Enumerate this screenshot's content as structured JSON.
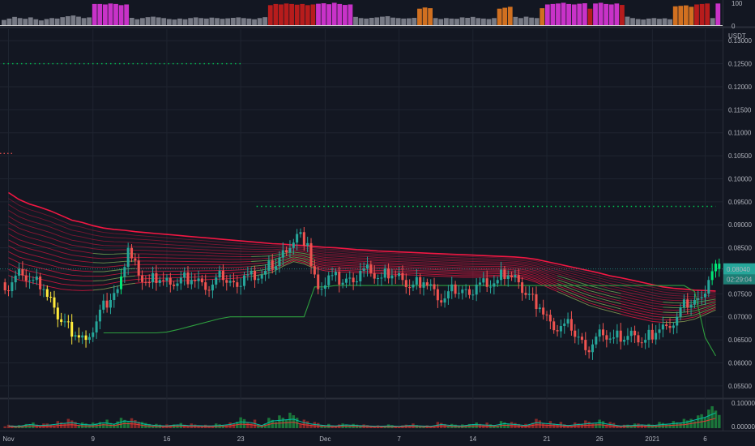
{
  "colors": {
    "background": "#131722",
    "grid": "#1f2430",
    "separator": "#2a2e39",
    "axis_text": "#b2b5be",
    "bull": "#26a69a",
    "bear": "#ef5350",
    "bright_green": "#00e676",
    "ribbon_red": "#ff1744",
    "ribbon_green": "#4caf50",
    "magenta": "#c832c8",
    "dark_red": "#b71c1c",
    "orange": "#d17020",
    "gray": "#787b86",
    "yellow": "#ffeb3b",
    "dotted_green": "#00c853",
    "price_badge": "#26a69a"
  },
  "chart_data": [
    {
      "type": "bar",
      "name_visible": false,
      "ylim": [
        0,
        100
      ],
      "yticks": [
        "100",
        "0"
      ],
      "values": [
        22,
        28,
        35,
        30,
        27,
        33,
        25,
        20,
        26,
        30,
        28,
        34,
        38,
        41,
        36,
        30,
        33,
        90,
        90,
        88,
        92,
        90,
        85,
        88,
        31,
        25,
        30,
        34,
        36,
        33,
        30,
        26,
        24,
        28,
        25,
        30,
        33,
        30,
        28,
        32,
        30,
        27,
        29,
        31,
        33,
        30,
        28,
        25,
        30,
        34,
        85,
        90,
        88,
        92,
        90,
        87,
        90,
        85,
        88,
        91,
        93,
        89,
        95,
        90,
        86,
        88,
        35,
        30,
        28,
        31,
        33,
        36,
        38,
        32,
        30,
        28,
        29,
        31,
        70,
        75,
        72,
        30,
        26,
        30,
        28,
        27,
        33,
        31,
        35,
        30,
        28,
        26,
        30,
        70,
        74,
        78,
        35,
        30,
        36,
        32,
        30,
        72,
        88,
        90,
        92,
        95,
        90,
        88,
        91,
        93,
        70,
        92,
        95,
        90,
        88,
        92,
        86,
        36,
        30,
        26,
        24,
        28,
        30,
        27,
        29,
        25,
        80,
        82,
        84,
        78,
        88,
        90,
        92,
        30,
        92
      ],
      "colors_key": [
        "g",
        "g",
        "g",
        "g",
        "g",
        "g",
        "g",
        "g",
        "g",
        "g",
        "g",
        "g",
        "g",
        "g",
        "g",
        "g",
        "g",
        "m",
        "m",
        "m",
        "m",
        "m",
        "m",
        "m",
        "g",
        "g",
        "g",
        "g",
        "g",
        "g",
        "g",
        "g",
        "g",
        "g",
        "g",
        "g",
        "g",
        "g",
        "g",
        "g",
        "g",
        "g",
        "g",
        "g",
        "g",
        "g",
        "g",
        "g",
        "g",
        "g",
        "r",
        "r",
        "r",
        "r",
        "r",
        "r",
        "r",
        "r",
        "r",
        "m",
        "m",
        "m",
        "m",
        "m",
        "m",
        "m",
        "g",
        "g",
        "g",
        "g",
        "g",
        "g",
        "g",
        "g",
        "g",
        "g",
        "g",
        "g",
        "o",
        "o",
        "o",
        "g",
        "g",
        "g",
        "g",
        "g",
        "g",
        "g",
        "g",
        "g",
        "g",
        "g",
        "g",
        "o",
        "o",
        "o",
        "g",
        "g",
        "g",
        "g",
        "g",
        "o",
        "m",
        "m",
        "m",
        "m",
        "m",
        "m",
        "m",
        "m",
        "r",
        "m",
        "m",
        "m",
        "m",
        "m",
        "r",
        "g",
        "g",
        "g",
        "g",
        "g",
        "g",
        "g",
        "g",
        "g",
        "o",
        "o",
        "o",
        "o",
        "r",
        "r",
        "r",
        "g",
        "m"
      ]
    },
    {
      "type": "candlestick",
      "currency": "USDT",
      "ylim": [
        0.0525,
        0.1325
      ],
      "price_ticks": [
        "0.13000",
        "0.12500",
        "0.12000",
        "0.11500",
        "0.11000",
        "0.10500",
        "0.10000",
        "0.09500",
        "0.09000",
        "0.08500",
        "0.08000",
        "0.07500",
        "0.07000",
        "0.06500",
        "0.06000",
        "0.05500"
      ],
      "price_tick_values": [
        0.13,
        0.125,
        0.12,
        0.115,
        0.11,
        0.105,
        0.1,
        0.095,
        0.09,
        0.085,
        0.08,
        0.075,
        0.07,
        0.065,
        0.06,
        0.055
      ],
      "last_price": "0.08040",
      "last_price_value": 0.0804,
      "countdown": "02:29:04",
      "x_labels": [
        "Nov",
        "9",
        "16",
        "23",
        "Dec",
        "7",
        "14",
        "21",
        "26",
        "2021",
        "6"
      ],
      "x_label_positions_day_index": [
        0,
        8,
        15,
        22,
        30,
        37,
        44,
        51,
        56,
        61,
        66
      ],
      "days": 68,
      "closes": [
        0.0775,
        0.079,
        0.078,
        0.076,
        0.072,
        0.069,
        0.066,
        0.065,
        0.069,
        0.072,
        0.076,
        0.085,
        0.079,
        0.0775,
        0.078,
        0.077,
        0.0785,
        0.078,
        0.0775,
        0.077,
        0.078,
        0.0775,
        0.079,
        0.078,
        0.08,
        0.081,
        0.084,
        0.088,
        0.086,
        0.076,
        0.079,
        0.077,
        0.0785,
        0.08,
        0.0795,
        0.0785,
        0.079,
        0.078,
        0.077,
        0.0775,
        0.076,
        0.074,
        0.075,
        0.076,
        0.077,
        0.0765,
        0.078,
        0.079,
        0.0775,
        0.075,
        0.072,
        0.069,
        0.068,
        0.067,
        0.065,
        0.064,
        0.066,
        0.0655,
        0.065,
        0.066,
        0.065,
        0.0665,
        0.068,
        0.07,
        0.072,
        0.074,
        0.078,
        0.0804
      ],
      "series": [
        {
          "name_visible": false,
          "role": "upper_ribbon_top",
          "values": [
            0.097,
            0.0955,
            0.0945,
            0.0938,
            0.093,
            0.092,
            0.091,
            0.0905,
            0.0898,
            0.0893,
            0.089,
            0.0888,
            0.0885,
            0.0883,
            0.0881,
            0.0879,
            0.0877,
            0.0875,
            0.0873,
            0.0871,
            0.0869,
            0.0867,
            0.0865,
            0.0863,
            0.0861,
            0.0859,
            0.0858,
            0.0856,
            0.0855,
            0.0853,
            0.0851,
            0.085,
            0.0848,
            0.0846,
            0.0845,
            0.0843,
            0.0842,
            0.0841,
            0.084,
            0.0839,
            0.0838,
            0.0837,
            0.0836,
            0.0835,
            0.0834,
            0.0833,
            0.0832,
            0.0831,
            0.083,
            0.0828,
            0.0825,
            0.082,
            0.0815,
            0.081,
            0.0805,
            0.08,
            0.0795,
            0.0789,
            0.0785,
            0.078,
            0.0775,
            0.077,
            0.0765,
            0.0762,
            0.076,
            0.0758,
            0.0757,
            0.0756
          ]
        },
        {
          "name_visible": false,
          "role": "upper_ribbon_bottom",
          "values": [
            0.079,
            0.078,
            0.0775,
            0.077,
            0.0765,
            0.076,
            0.0758,
            0.0757,
            0.0758,
            0.076,
            0.0765,
            0.077,
            0.0773,
            0.0775,
            0.0776,
            0.0777,
            0.0778,
            0.0779,
            0.078,
            0.0781,
            0.0782,
            0.0783,
            0.0785,
            0.0788,
            0.0792,
            0.0797,
            0.081,
            0.082,
            0.0815,
            0.0805,
            0.08,
            0.0798,
            0.0797,
            0.0796,
            0.0795,
            0.0794,
            0.0793,
            0.0792,
            0.0791,
            0.079,
            0.0789,
            0.0788,
            0.0787,
            0.0786,
            0.0786,
            0.0786,
            0.0787,
            0.0788,
            0.0786,
            0.0782,
            0.0775,
            0.0765,
            0.0755,
            0.0745,
            0.0735,
            0.0725,
            0.0718,
            0.0712,
            0.0706,
            0.07,
            0.0695,
            0.069,
            0.0688,
            0.0688,
            0.069,
            0.0695,
            0.0705,
            0.0715
          ]
        },
        {
          "name_visible": false,
          "role": "support_step",
          "values": [
            null,
            null,
            null,
            null,
            null,
            null,
            null,
            null,
            null,
            0.0665,
            0.0665,
            0.0665,
            0.0665,
            0.0665,
            0.0665,
            0.0667,
            0.0672,
            0.0678,
            0.0684,
            0.069,
            0.0696,
            0.07,
            0.07,
            0.07,
            0.07,
            0.07,
            0.07,
            0.07,
            0.07,
            0.0765,
            0.0765,
            0.0768,
            0.0768,
            0.0768,
            0.0768,
            0.0768,
            0.0768,
            0.0768,
            0.0768,
            0.0768,
            0.0768,
            0.0768,
            0.0768,
            0.0768,
            0.0768,
            0.0768,
            0.0768,
            0.0768,
            0.0768,
            0.0768,
            0.0768,
            0.0768,
            0.0768,
            0.0768,
            0.0768,
            0.0768,
            0.0768,
            0.0768,
            0.0768,
            0.0768,
            0.0768,
            0.0768,
            0.0768,
            0.0768,
            0.0768,
            0.0755,
            0.0655,
            0.0615
          ]
        }
      ],
      "dotted_levels": [
        {
          "value": 0.125,
          "from_day": 0,
          "to_day": 22
        },
        {
          "value": 0.094,
          "from_day": 24,
          "to_day": 67
        }
      ]
    },
    {
      "type": "bar",
      "name_visible": false,
      "yticks": [
        "0.10000",
        "0.00000"
      ],
      "ylim": [
        0,
        0.11
      ],
      "values": [
        0.012,
        0.01,
        0.02,
        0.015,
        0.018,
        0.025,
        0.03,
        0.02,
        0.018,
        0.03,
        0.022,
        0.04,
        0.035,
        0.02,
        0.015,
        0.012,
        0.018,
        0.015,
        0.014,
        0.012,
        0.015,
        0.02,
        0.035,
        0.03,
        0.015,
        0.04,
        0.045,
        0.05,
        0.03,
        0.02,
        0.015,
        0.012,
        0.018,
        0.015,
        0.012,
        0.01,
        0.012,
        0.01,
        0.015,
        0.012,
        0.01,
        0.02,
        0.015,
        0.012,
        0.02,
        0.018,
        0.015,
        0.025,
        0.02,
        0.015,
        0.03,
        0.025,
        0.02,
        0.015,
        0.02,
        0.025,
        0.03,
        0.02,
        0.012,
        0.015,
        0.018,
        0.015,
        0.02,
        0.025,
        0.03,
        0.045,
        0.06,
        0.085
      ],
      "up": [
        false,
        true,
        true,
        false,
        false,
        false,
        false,
        true,
        true,
        true,
        true,
        true,
        false,
        true,
        true,
        false,
        true,
        false,
        false,
        false,
        true,
        false,
        true,
        false,
        true,
        true,
        true,
        true,
        false,
        false,
        true,
        false,
        true,
        true,
        false,
        false,
        true,
        false,
        false,
        true,
        false,
        false,
        true,
        true,
        true,
        false,
        true,
        true,
        false,
        false,
        false,
        false,
        false,
        false,
        false,
        false,
        true,
        false,
        false,
        true,
        false,
        true,
        true,
        true,
        true,
        true,
        true,
        true
      ]
    }
  ]
}
